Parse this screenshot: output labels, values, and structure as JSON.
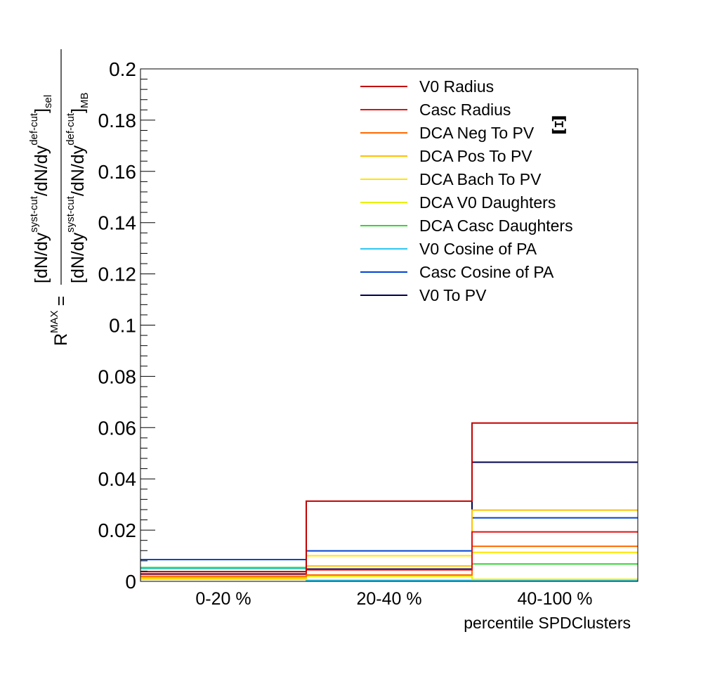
{
  "chart_data": {
    "type": "step",
    "categories": [
      "0-20 %",
      "20-40 %",
      "40-100 %"
    ],
    "xlabel": "percentile SPDClusters",
    "ylabel": {
      "prefix": "R",
      "prefix_sup": "MAX",
      "equals": "=",
      "numerator": "[dN/dy",
      "numerator_sup1": "syst-cut",
      "numerator_mid": "/dN/dy",
      "numerator_sup2": "def-cut",
      "numerator_close": "]",
      "numerator_sub": "sel",
      "denominator": "[dN/dy",
      "denominator_sup1": "syst-cut",
      "denominator_mid": "/dN/dy",
      "denominator_sup2": "def-cut",
      "denominator_close": "]",
      "denominator_sub": "MB"
    },
    "annotation": "Ξ",
    "ylim": [
      0,
      0.2
    ],
    "yticks": [
      "0",
      "0.02",
      "0.04",
      "0.06",
      "0.08",
      "0.1",
      "0.12",
      "0.14",
      "0.16",
      "0.18",
      "0.2"
    ],
    "legend_position": "top-right",
    "series": [
      {
        "name": "V0 Radius",
        "color": "#c40000",
        "values": [
          0.0038,
          0.0313,
          0.0618
        ]
      },
      {
        "name": "Casc Radius",
        "color": "#e01010",
        "values": [
          0.003,
          0.0045,
          0.0193
        ]
      },
      {
        "name": "DCA Neg To PV",
        "color": "#ff6a00",
        "values": [
          0.002,
          0.0025,
          0.0137
        ]
      },
      {
        "name": "DCA Pos To PV",
        "color": "#ffc000",
        "values": [
          0.0015,
          0.006,
          0.0278
        ]
      },
      {
        "name": "DCA Bach To PV",
        "color": "#ffe600",
        "values": [
          0.001,
          0.01,
          0.0113
        ]
      },
      {
        "name": "DCA V0 Daughters",
        "color": "#e8f000",
        "values": [
          0.0008,
          0.002,
          0.0008
        ]
      },
      {
        "name": "DCA Casc Daughters",
        "color": "#30d830",
        "values": [
          0.0054,
          0.0022,
          0.0068
        ]
      },
      {
        "name": "V0 Cosine of PA",
        "color": "#30c8f0",
        "values": [
          0.005,
          0.0004,
          0.0004
        ]
      },
      {
        "name": "Casc Cosine of PA",
        "color": "#0044d0",
        "values": [
          0.0085,
          0.0119,
          0.0248
        ]
      },
      {
        "name": "V0 To PV",
        "color": "#000050",
        "values": [
          0.0028,
          0.0048,
          0.0465
        ]
      }
    ]
  }
}
